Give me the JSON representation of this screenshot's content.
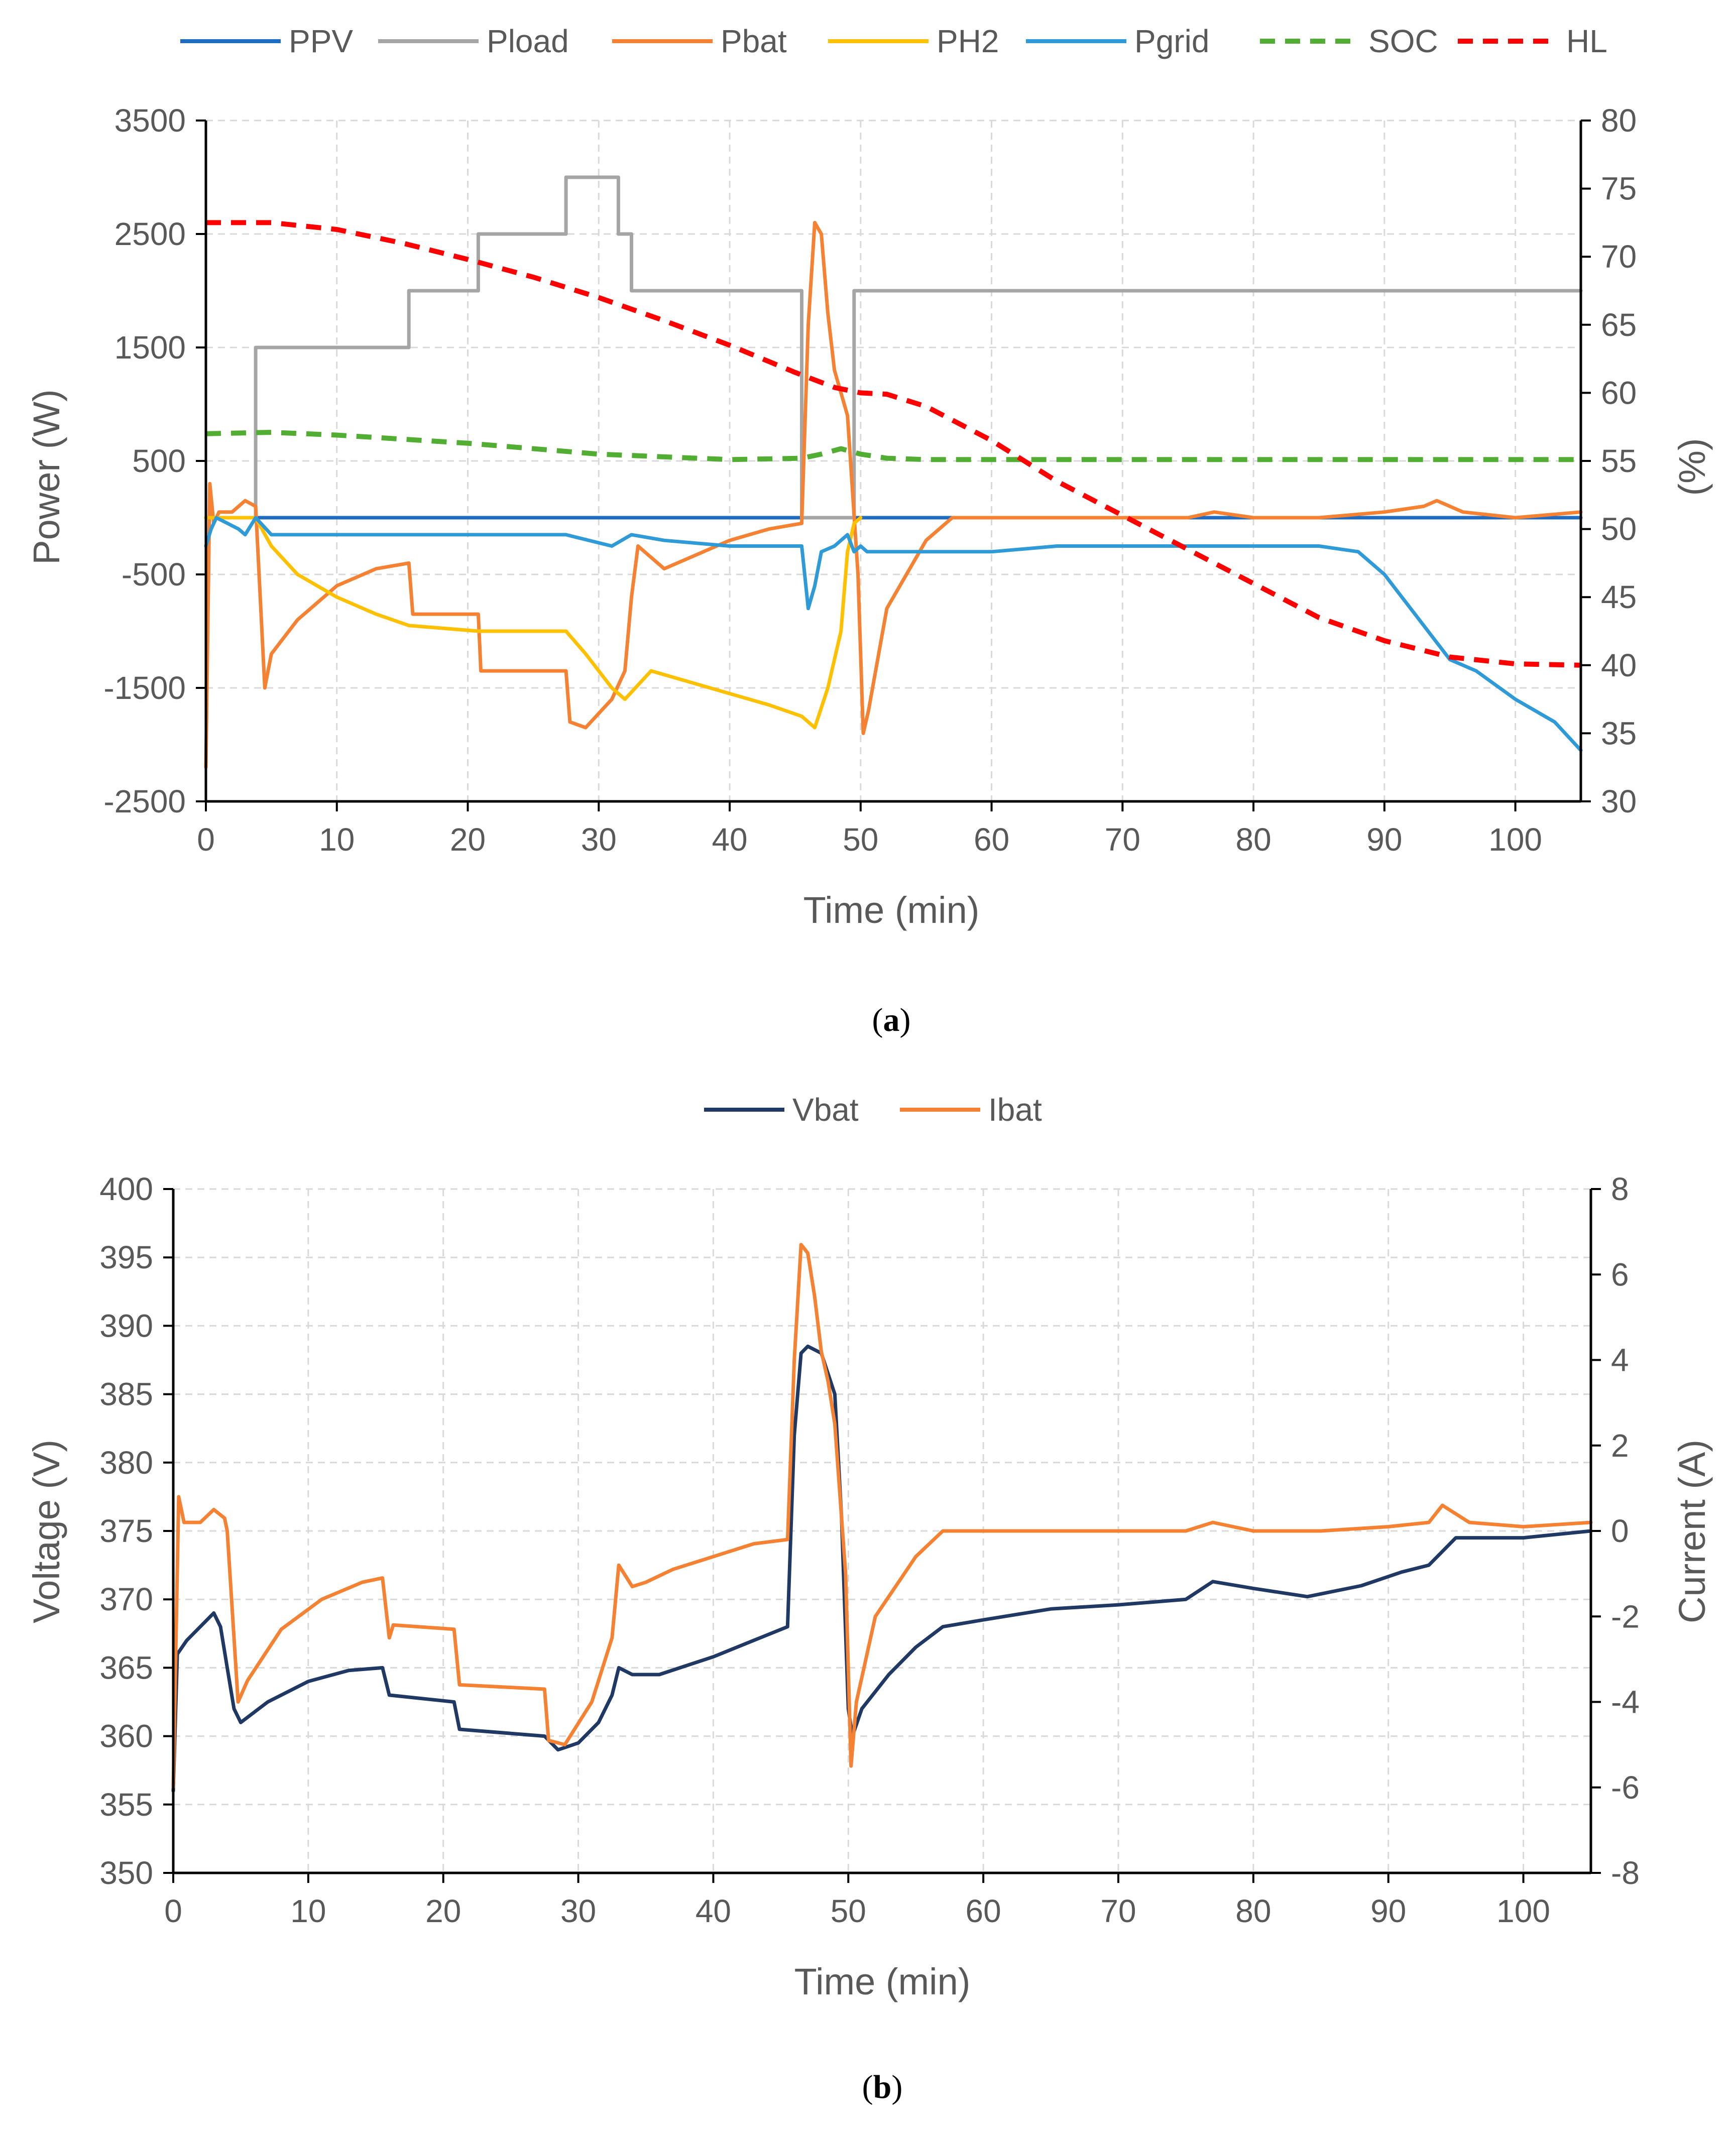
{
  "chart_data": [
    {
      "type": "line",
      "id": "a",
      "caption_letter": "a",
      "xlabel": "Time (min)",
      "ylabel": "Power (W)",
      "y2label": "(%)",
      "xlim": [
        0,
        105
      ],
      "ylim": [
        -2500,
        3500
      ],
      "y2lim": [
        30,
        80
      ],
      "xticks": [
        0,
        10,
        20,
        30,
        40,
        50,
        60,
        70,
        80,
        90,
        100
      ],
      "yticks": [
        -2500,
        -1500,
        -500,
        500,
        1500,
        2500,
        3500
      ],
      "y2ticks": [
        30,
        35,
        40,
        45,
        50,
        55,
        60,
        65,
        70,
        75,
        80
      ],
      "grid": true,
      "legend_position": "top",
      "series": [
        {
          "name": "PPV",
          "axis": "left",
          "color": "#1f6cc1",
          "dash": "solid",
          "x": [
            0,
            105
          ],
          "values": [
            0,
            0
          ]
        },
        {
          "name": "Pload",
          "axis": "left",
          "color": "#a5a5a5",
          "dash": "solid",
          "x": [
            0,
            3.8,
            3.8,
            15.5,
            15.5,
            20.8,
            20.8,
            27.5,
            27.5,
            31.5,
            31.5,
            32.5,
            32.5,
            45.5,
            45.5,
            49.5,
            49.5,
            105
          ],
          "values": [
            0,
            0,
            1500,
            1500,
            2000,
            2000,
            2500,
            2500,
            3000,
            3000,
            2500,
            2500,
            2000,
            2000,
            0,
            0,
            2000,
            2000
          ]
        },
        {
          "name": "Pbat",
          "axis": "left",
          "color": "#f58232",
          "dash": "solid",
          "x": [
            0,
            0.3,
            0.6,
            1,
            2,
            3,
            3.8,
            4.5,
            5,
            7,
            10,
            13,
            15.5,
            15.8,
            16,
            20.8,
            21,
            27.5,
            27.8,
            29,
            31,
            32,
            32.5,
            33,
            34,
            35,
            37,
            40,
            43,
            45.5,
            46,
            46.5,
            47,
            47.5,
            48,
            49,
            49.8,
            50.2,
            50.6,
            52,
            55,
            57,
            60,
            65,
            70,
            75,
            77,
            80,
            85,
            90,
            93,
            94,
            96,
            100,
            105
          ],
          "values": [
            -2200,
            300,
            -50,
            50,
            50,
            150,
            100,
            -1500,
            -1200,
            -900,
            -600,
            -450,
            -400,
            -850,
            -850,
            -850,
            -1350,
            -1350,
            -1800,
            -1850,
            -1600,
            -1350,
            -700,
            -250,
            -350,
            -450,
            -350,
            -200,
            -100,
            -50,
            1700,
            2600,
            2500,
            1800,
            1300,
            900,
            -500,
            -1900,
            -1700,
            -800,
            -200,
            0,
            0,
            0,
            0,
            0,
            50,
            0,
            0,
            50,
            100,
            150,
            50,
            0,
            50
          ]
        },
        {
          "name": "PH2",
          "axis": "left",
          "color": "#ffc000",
          "dash": "solid",
          "x": [
            0,
            3.8,
            5,
            7,
            10,
            13,
            15.5,
            20.8,
            27.5,
            29,
            31,
            32,
            34,
            37,
            40,
            43,
            45.5,
            46.5,
            47.5,
            48.5,
            49,
            49.5,
            50
          ],
          "values": [
            0,
            0,
            -250,
            -500,
            -700,
            -850,
            -950,
            -1000,
            -1000,
            -1200,
            -1500,
            -1600,
            -1350,
            -1450,
            -1550,
            -1650,
            -1750,
            -1850,
            -1500,
            -1000,
            -300,
            -50,
            0
          ]
        },
        {
          "name": "Pgrid",
          "axis": "left",
          "color": "#2e9ad8",
          "dash": "solid",
          "x": [
            0,
            0.4,
            0.8,
            2.5,
            3,
            3.8,
            5,
            7,
            10,
            15.5,
            16,
            20.8,
            27.5,
            31,
            32.5,
            35,
            40,
            45.5,
            46,
            46.5,
            47,
            48,
            49,
            49.5,
            50,
            50.5,
            55,
            60,
            65,
            70,
            75,
            80,
            85,
            88,
            90,
            92,
            95,
            97,
            100,
            103,
            105
          ],
          "values": [
            -250,
            -100,
            0,
            -100,
            -150,
            0,
            -150,
            -150,
            -150,
            -150,
            -150,
            -150,
            -150,
            -250,
            -150,
            -200,
            -250,
            -250,
            -800,
            -600,
            -300,
            -250,
            -150,
            -300,
            -250,
            -300,
            -300,
            -300,
            -250,
            -250,
            -250,
            -250,
            -250,
            -300,
            -500,
            -800,
            -1250,
            -1350,
            -1600,
            -1800,
            -2050
          ]
        },
        {
          "name": "SOC",
          "axis": "right",
          "color": "#52ae32",
          "dash": "dashed",
          "x": [
            0,
            5,
            10,
            20,
            30,
            40,
            45.5,
            47,
            48.5,
            50,
            52,
            55,
            60,
            70,
            80,
            90,
            100,
            105
          ],
          "values": [
            57,
            57.1,
            56.9,
            56.3,
            55.5,
            55.1,
            55.2,
            55.5,
            55.9,
            55.5,
            55.2,
            55.1,
            55.1,
            55.1,
            55.1,
            55.1,
            55.1,
            55.1
          ]
        },
        {
          "name": "HL",
          "axis": "right",
          "color": "#ff0000",
          "dash": "dashed",
          "x": [
            0,
            5,
            10,
            15,
            20,
            25,
            30,
            35,
            40,
            45,
            48,
            50,
            52,
            55,
            60,
            65,
            70,
            75,
            80,
            85,
            90,
            95,
            100,
            105
          ],
          "values": [
            72.5,
            72.5,
            72,
            71,
            69.8,
            68.5,
            67,
            65.3,
            63.5,
            61.5,
            60.4,
            60,
            59.9,
            59,
            56.5,
            53.5,
            51,
            48.5,
            46,
            43.5,
            41.8,
            40.6,
            40.1,
            40
          ]
        }
      ]
    },
    {
      "type": "line",
      "id": "b",
      "caption_letter": "b",
      "xlabel": "Time (min)",
      "ylabel": "Voltage (V)",
      "y2label": "Current (A)",
      "xlim": [
        0,
        105
      ],
      "ylim": [
        350,
        400
      ],
      "y2lim": [
        -8,
        8
      ],
      "xticks": [
        0,
        10,
        20,
        30,
        40,
        50,
        60,
        70,
        80,
        90,
        100
      ],
      "yticks": [
        350,
        355,
        360,
        365,
        370,
        375,
        380,
        385,
        390,
        395,
        400
      ],
      "y2ticks": [
        -8,
        -6,
        -4,
        -2,
        0,
        2,
        4,
        6,
        8
      ],
      "grid": true,
      "legend_position": "top",
      "series": [
        {
          "name": "Vbat",
          "axis": "left",
          "color": "#1f3864",
          "dash": "solid",
          "x": [
            0,
            0.3,
            1,
            2,
            3,
            3.5,
            4,
            4.5,
            5,
            7,
            10,
            13,
            15.5,
            16,
            20.8,
            21.2,
            27.5,
            28.5,
            30,
            31.5,
            32.5,
            33,
            34,
            36,
            40,
            43,
            45.5,
            46,
            46.5,
            47,
            48,
            49,
            49.5,
            50,
            50.3,
            51,
            53,
            55,
            57,
            60,
            65,
            70,
            75,
            77,
            80,
            84,
            88,
            91,
            93,
            95,
            100,
            105
          ],
          "values": [
            356,
            366,
            367,
            368,
            369,
            368,
            365,
            362,
            361,
            362.5,
            364,
            364.8,
            365,
            363,
            362.5,
            360.5,
            360,
            359,
            359.5,
            361,
            363,
            365,
            364.5,
            364.5,
            365.8,
            367,
            368,
            382,
            388,
            388.5,
            388,
            385,
            376,
            362,
            360,
            362,
            364.5,
            366.5,
            368,
            368.5,
            369.3,
            369.6,
            370,
            371.3,
            370.8,
            370.2,
            371,
            372,
            372.5,
            374.5,
            374.5,
            375
          ]
        },
        {
          "name": "Ibat",
          "axis": "right",
          "color": "#f58232",
          "dash": "solid",
          "x": [
            0,
            0.4,
            0.8,
            2,
            3,
            3.8,
            4,
            4.8,
            5.5,
            8,
            11,
            14,
            15.5,
            16,
            16.3,
            20.8,
            21.2,
            27.5,
            27.8,
            29,
            31,
            32.5,
            33,
            34,
            35,
            37,
            40,
            43,
            45.5,
            46,
            46.5,
            47,
            47.5,
            48,
            48.5,
            49,
            49.8,
            50.2,
            50.6,
            52,
            55,
            57,
            60,
            65,
            70,
            75,
            77,
            80,
            85,
            90,
            93,
            94,
            96,
            100,
            105
          ],
          "values": [
            -6,
            0.8,
            0.2,
            0.2,
            0.5,
            0.3,
            0,
            -4,
            -3.5,
            -2.3,
            -1.6,
            -1.2,
            -1.1,
            -2.5,
            -2.2,
            -2.3,
            -3.6,
            -3.7,
            -4.9,
            -5,
            -4,
            -2.5,
            -0.8,
            -1.3,
            -1.2,
            -0.9,
            -0.6,
            -0.3,
            -0.2,
            4,
            6.7,
            6.5,
            5.5,
            4.2,
            3.5,
            2.5,
            -1,
            -5.5,
            -4,
            -2,
            -0.6,
            0,
            0,
            0,
            0,
            0,
            0.2,
            0,
            0,
            0.1,
            0.2,
            0.6,
            0.2,
            0.1,
            0.2
          ]
        }
      ]
    }
  ]
}
